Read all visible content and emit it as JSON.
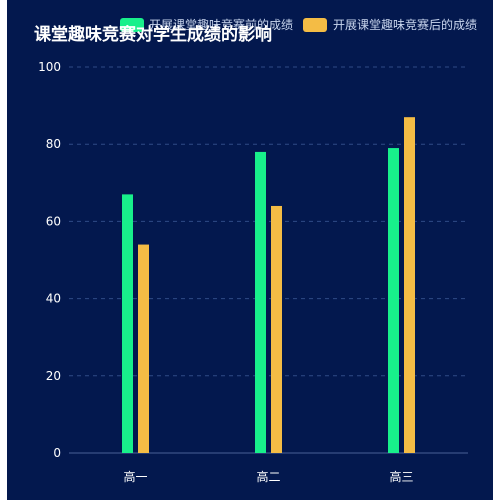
{
  "chart_data": {
    "type": "bar",
    "title": "课堂趣味竞赛对学生成绩的影响",
    "categories": [
      "高一",
      "高二",
      "高三"
    ],
    "series": [
      {
        "name": "开展课堂趣味竞赛前的成绩",
        "values": [
          67,
          78,
          79
        ],
        "color": "#18f08b"
      },
      {
        "name": "开展课堂趣味竞赛后的成绩",
        "values": [
          54,
          64,
          87
        ],
        "color": "#f4bc45"
      }
    ],
    "yticks": [
      "0",
      "20",
      "40",
      "60",
      "80",
      "100"
    ],
    "ylim": [
      0,
      100
    ],
    "grid": true,
    "legend": "top"
  },
  "colors": {
    "background": "#03184e",
    "grid": "#2f4a86",
    "axis": "#4a5f96"
  }
}
